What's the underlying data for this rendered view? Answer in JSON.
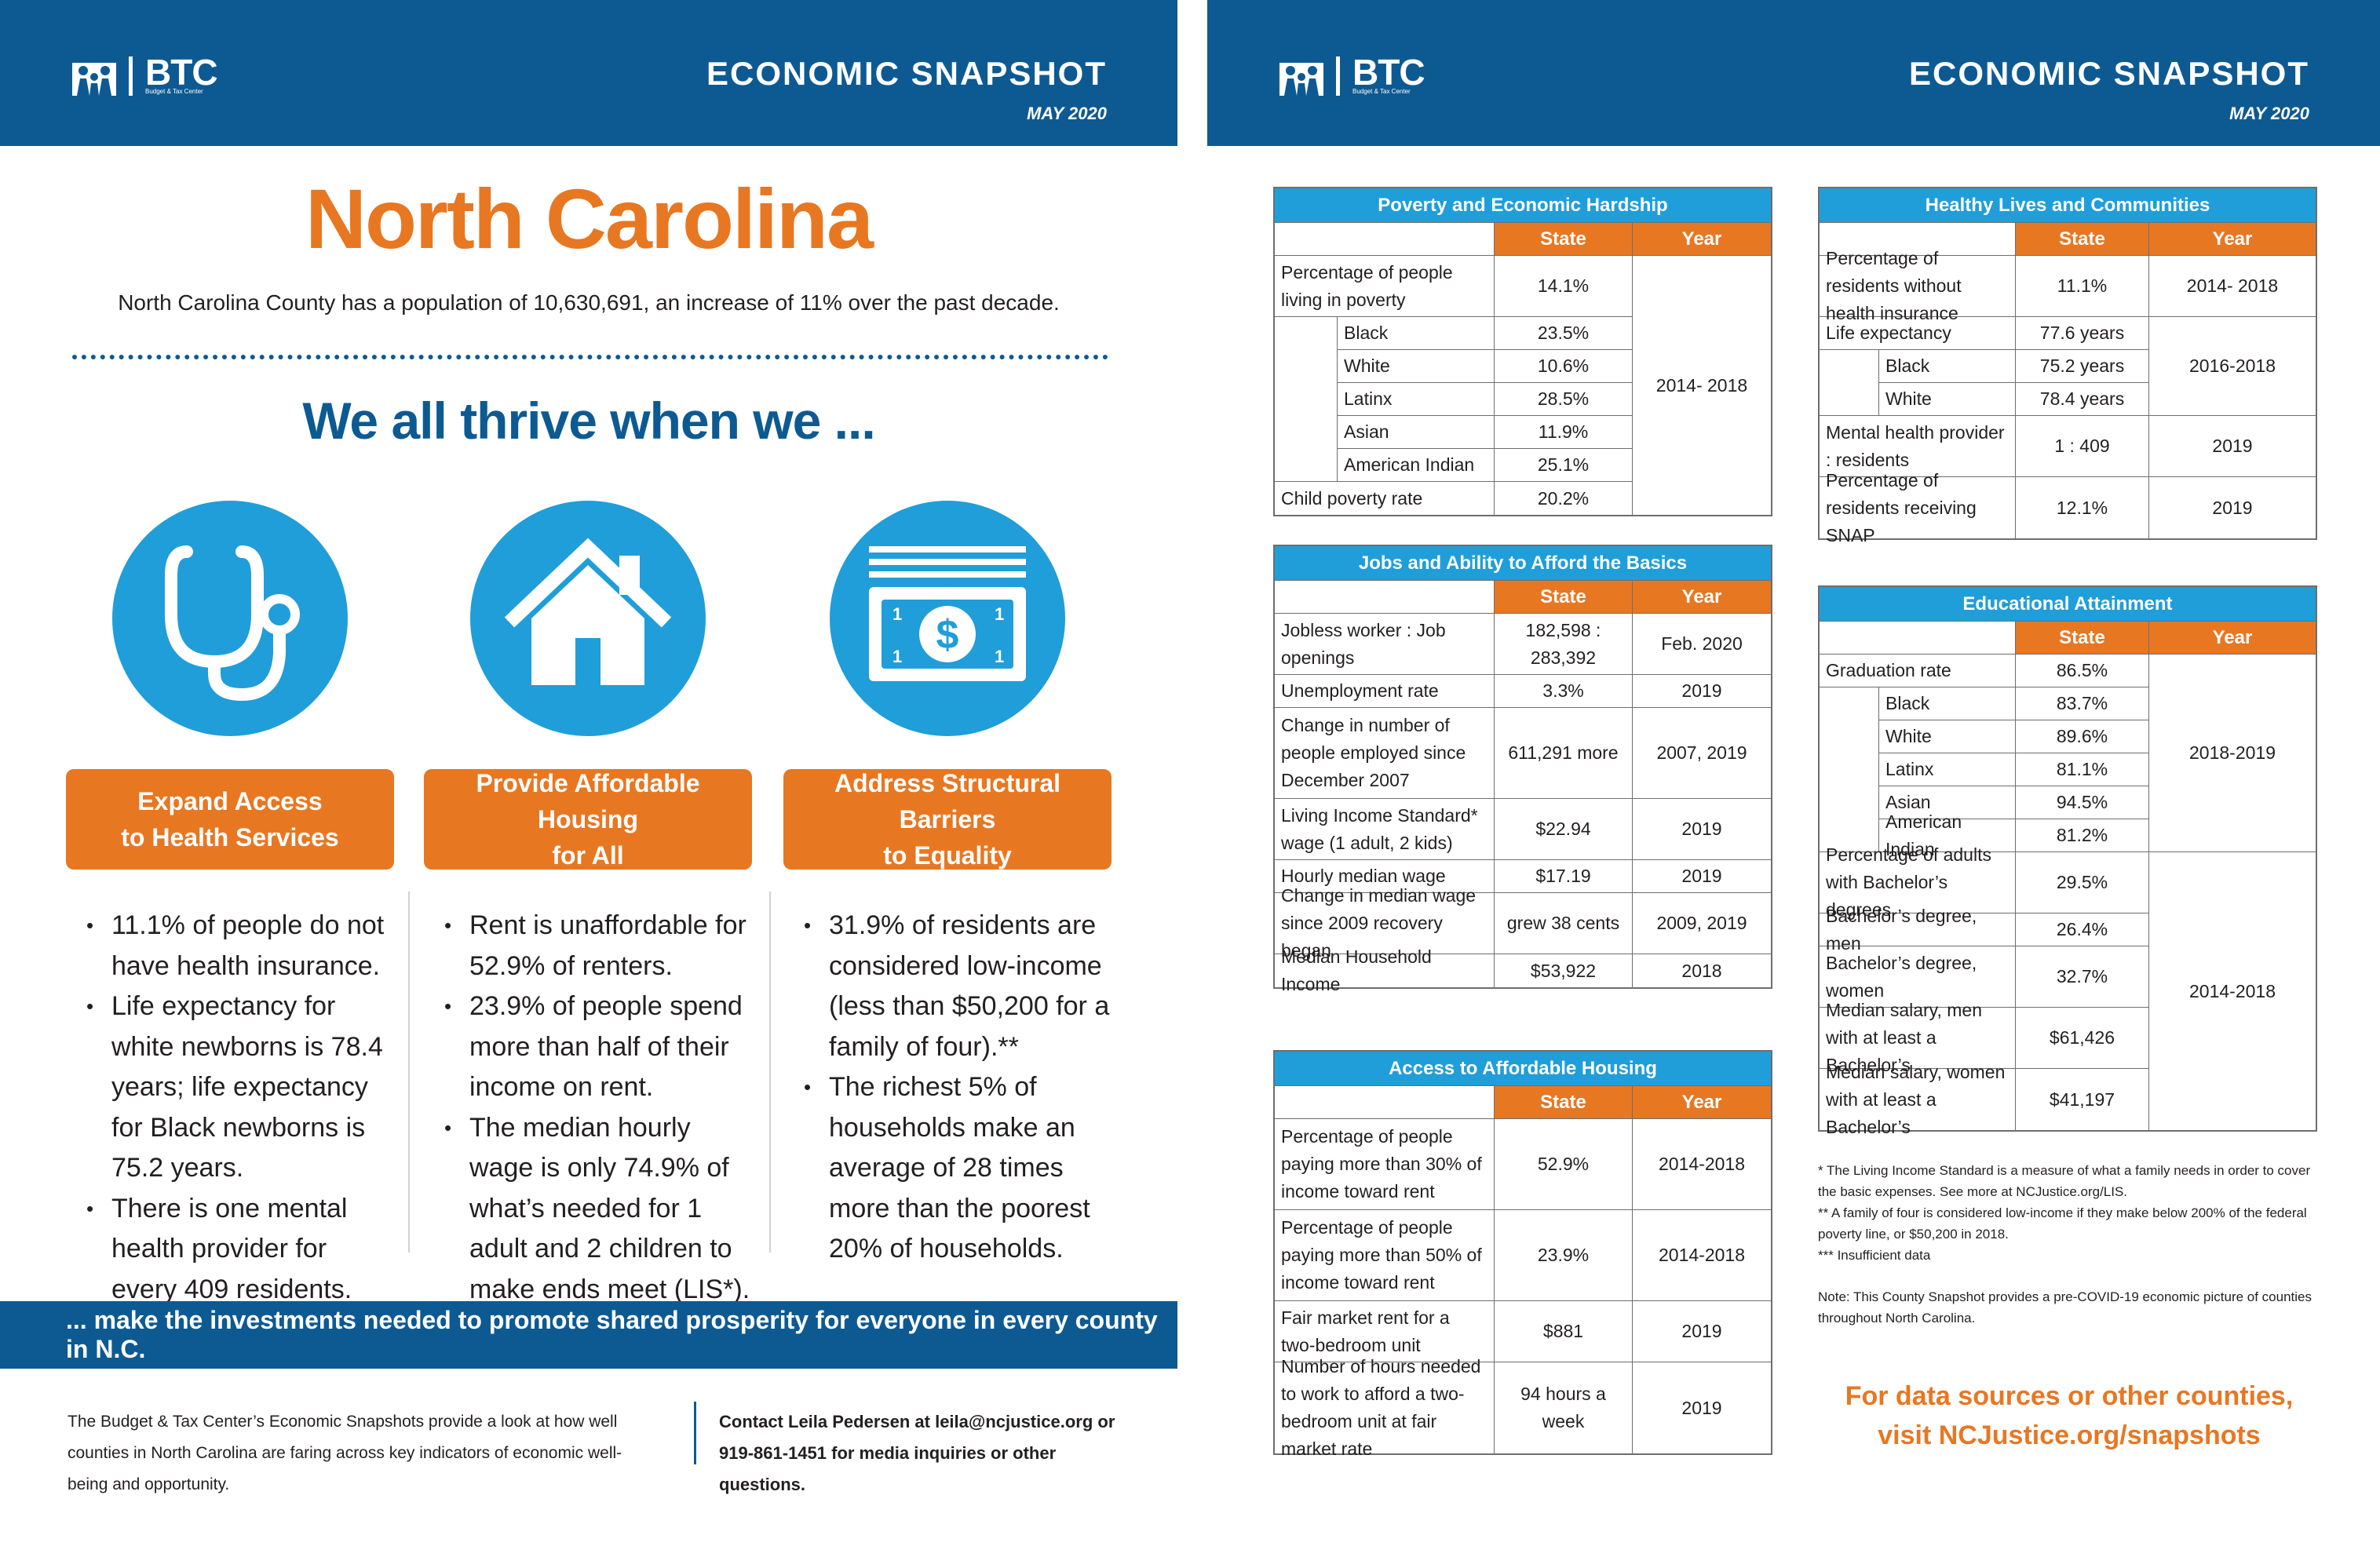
{
  "header": {
    "logo_text": "BTC",
    "logo_subtitle": "Budget & Tax Center",
    "snapshot_title": "ECONOMIC SNAPSHOT",
    "date": "MAY 2020"
  },
  "left": {
    "state_title": "North Carolina",
    "intro": "North Carolina County has a population of 10,630,691, an increase of 11% over the past decade.",
    "thrive": "We all thrive when we ...",
    "columns": [
      {
        "icon": "stethoscope-icon",
        "title_line1": "Expand Access",
        "title_line2": "to Health Services",
        "bullets": [
          "11.1% of people do not have health insurance.",
          "Life expectancy for white newborns is 78.4 years; life expectancy for Black newborns is 75.2 years.",
          "There is one mental health provider for every 409 residents."
        ]
      },
      {
        "icon": "house-icon",
        "title_line1": "Provide Affordable Housing",
        "title_line2": "for All",
        "bullets": [
          "Rent is unaffordable for 52.9% of renters.",
          "23.9% of people spend more than half of their income on rent.",
          "The median hourly wage is only 74.9% of what’s needed for 1 adult and 2 children to make ends meet (LIS*)."
        ]
      },
      {
        "icon": "dollar-bill-icon",
        "title_line1": "Address Structural Barriers",
        "title_line2": "to Equality",
        "bullets": [
          "31.9% of residents are considered low-income (less than $50,200 for a family of four).**",
          "The richest 5% of households make an average of 28 times more than the poorest 20% of households."
        ]
      }
    ],
    "banner": "... make the investments needed to promote shared prosperity for everyone in every county in N.C.",
    "footer_left": "The Budget & Tax Center’s Economic Snapshots provide a look at how well counties in North Carolina are faring across key indicators of economic well-being and opportunity.",
    "footer_right": "Contact Leila Pedersen at leila@ncjustice.org or 919-861-1451 for media inquiries or other questions."
  },
  "tables": {
    "col_state": "State",
    "col_year": "Year",
    "poverty": {
      "title": "Poverty and Economic Hardship",
      "rows": [
        {
          "label": "Percentage of people living in poverty",
          "state": "14.1%"
        },
        {
          "label": "Black",
          "state": "23.5%"
        },
        {
          "label": "White",
          "state": "10.6%"
        },
        {
          "label": "Latinx",
          "state": "28.5%"
        },
        {
          "label": "Asian",
          "state": "11.9%"
        },
        {
          "label": "American Indian",
          "state": "25.1%"
        },
        {
          "label": "Child poverty rate",
          "state": "20.2%"
        }
      ],
      "year": "2014- 2018"
    },
    "jobs": {
      "title": "Jobs and Ability to Afford the Basics",
      "rows": [
        {
          "label": "Jobless worker : Job openings",
          "state": "182,598 : 283,392",
          "year": "Feb. 2020"
        },
        {
          "label": "Unemployment rate",
          "state": "3.3%",
          "year": "2019"
        },
        {
          "label": "Change in number of people employed since December 2007",
          "state": "611,291 more",
          "year": "2007, 2019"
        },
        {
          "label": "Living Income Standard* wage (1 adult, 2 kids)",
          "state": "$22.94",
          "year": "2019"
        },
        {
          "label": "Hourly median wage",
          "state": "$17.19",
          "year": "2019"
        },
        {
          "label": "Change in median wage since 2009 recovery began",
          "state": "grew 38 cents",
          "year": "2009, 2019"
        },
        {
          "label": "Median Household Income",
          "state": "$53,922",
          "year": "2018"
        }
      ]
    },
    "housing": {
      "title": "Access to Affordable Housing",
      "rows": [
        {
          "label": "Percentage of people paying more than 30% of income toward rent",
          "state": "52.9%",
          "year": "2014-2018"
        },
        {
          "label": "Percentage of people paying more than 50% of income toward rent",
          "state": "23.9%",
          "year": "2014-2018"
        },
        {
          "label": "Fair market rent for a two-bedroom unit",
          "state": "$881",
          "year": "2019"
        },
        {
          "label": "Number of hours needed to work to afford a two-bedroom unit at fair market rate",
          "state": "94 hours a week",
          "year": "2019"
        }
      ]
    },
    "healthy": {
      "title": "Healthy Lives and Communities",
      "rows": [
        {
          "label": "Percentage of residents without health insurance",
          "state": "11.1%",
          "year": "2014- 2018"
        },
        {
          "label": "Life expectancy",
          "state": "77.6 years"
        },
        {
          "label": "Black",
          "state": "75.2 years"
        },
        {
          "label": "White",
          "state": "78.4 years"
        },
        {
          "label": "Mental health provider : residents",
          "state": "1 : 409",
          "year": "2019"
        },
        {
          "label": "Percentage of residents receiving SNAP",
          "state": "12.1%",
          "year": "2019"
        }
      ],
      "life_year": "2016-2018"
    },
    "education": {
      "title": "Educational Attainment",
      "rows": [
        {
          "label": "Graduation rate",
          "state": "86.5%"
        },
        {
          "label": "Black",
          "state": "83.7%"
        },
        {
          "label": "White",
          "state": "89.6%"
        },
        {
          "label": "Latinx",
          "state": "81.1%"
        },
        {
          "label": "Asian",
          "state": "94.5%"
        },
        {
          "label": "American Indian",
          "state": "81.2%"
        },
        {
          "label": "Percentage of adults with Bachelor’s degrees",
          "state": "29.5%"
        },
        {
          "label": "Bachelor’s degree, men",
          "state": "26.4%"
        },
        {
          "label": "Bachelor’s degree, women",
          "state": "32.7%"
        },
        {
          "label": "Median salary, men with at least a Bachelor’s",
          "state": "$61,426"
        },
        {
          "label": "Median salary, women with at least a Bachelor’s",
          "state": "$41,197"
        }
      ],
      "grad_year": "2018-2019",
      "degree_year": "2014-2018"
    }
  },
  "notes": {
    "n1": "* The Living Income Standard is a measure of what a family needs in order to cover the basic expenses. See more at NCJustice.org/LIS.",
    "n2": "** A family of four is considered low-income if they make below 200% of the federal poverty line, or $50,200 in 2018.",
    "n3": "*** Insufficient data",
    "n4": "Note: This County Snapshot provides a pre-COVID-19 economic picture of counties throughout North Carolina."
  },
  "cta": {
    "line1": "For data sources or other counties,",
    "line2": "visit NCJustice.org/snapshots"
  },
  "colors": {
    "blue": "#0d5a93",
    "light_blue": "#1f9ed9",
    "orange": "#e87722"
  }
}
